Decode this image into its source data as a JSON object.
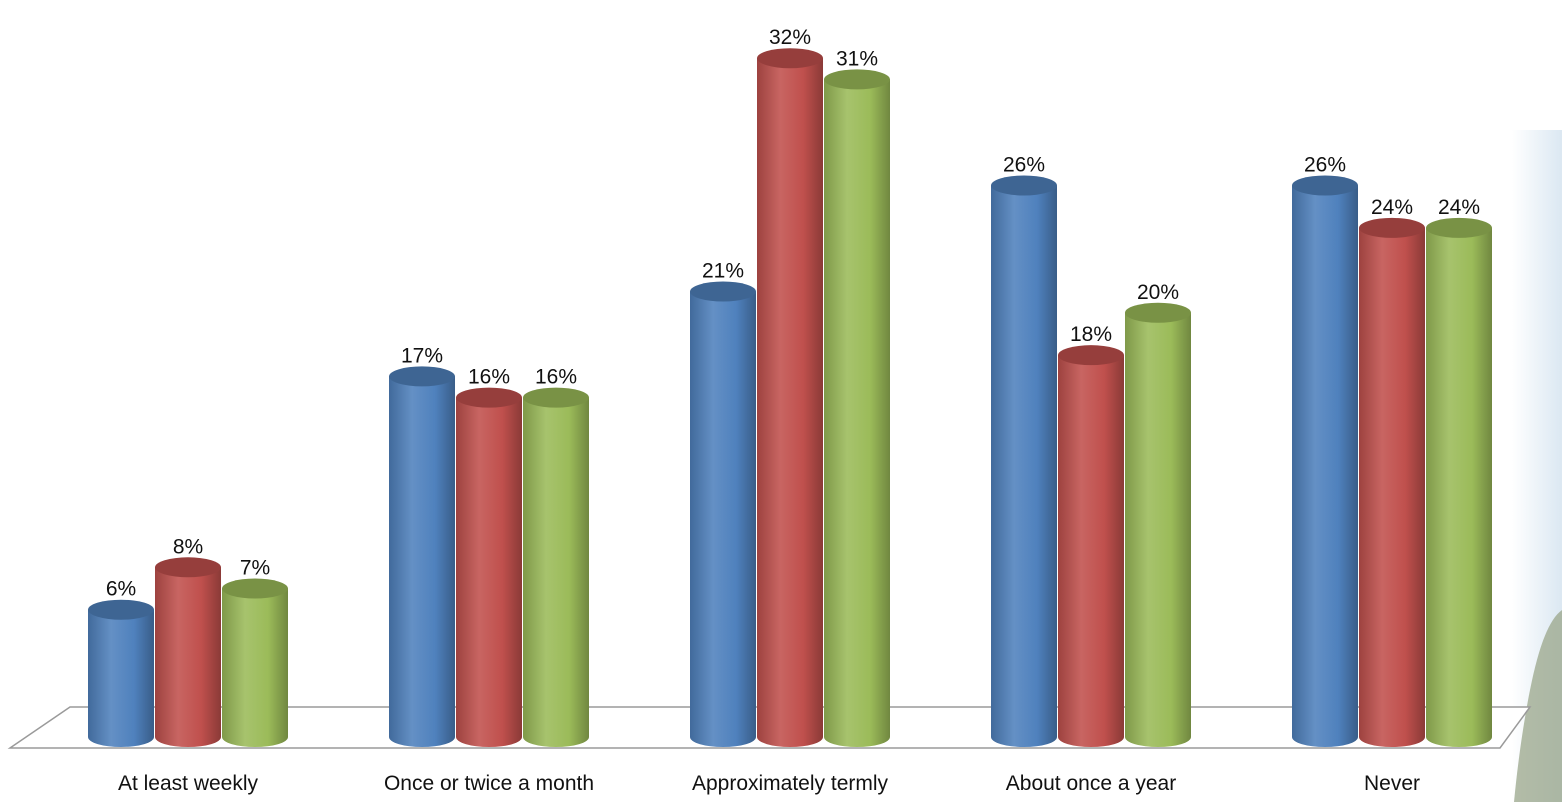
{
  "chart_data": {
    "type": "bar",
    "title": "",
    "xlabel": "",
    "ylabel": "",
    "ylim": [
      0,
      33
    ],
    "grid": false,
    "legend": "none",
    "categories": [
      "At least weekly",
      "Once or twice a month",
      "Approximately termly",
      "About once a year",
      "Never"
    ],
    "series": [
      {
        "values": [
          6,
          17,
          21,
          26,
          26
        ],
        "labels": [
          "6%",
          "17%",
          "21%",
          "26%",
          "26%"
        ],
        "color": "#4f81bd"
      },
      {
        "values": [
          8,
          16,
          32,
          18,
          24
        ],
        "labels": [
          "8%",
          "16%",
          "32%",
          "18%",
          "24%"
        ],
        "color": "#c0504d"
      },
      {
        "values": [
          7,
          16,
          31,
          20,
          24
        ],
        "labels": [
          "7%",
          "16%",
          "31%",
          "20%",
          "24%"
        ],
        "color": "#9bbb59"
      }
    ]
  }
}
